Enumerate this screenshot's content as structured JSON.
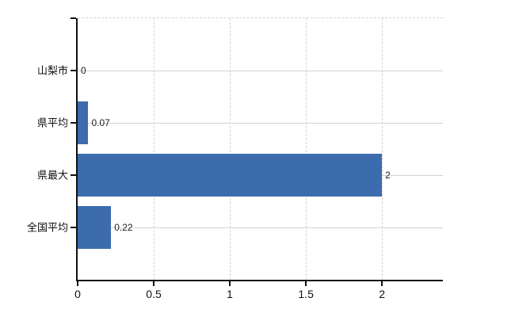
{
  "chart_data": {
    "type": "bar",
    "orientation": "horizontal",
    "title": "",
    "xlabel": "",
    "ylabel": "",
    "categories": [
      "山梨市",
      "県平均",
      "県最大",
      "全国平均"
    ],
    "values": [
      0,
      0.07,
      2,
      0.22
    ],
    "value_labels": [
      "0",
      "0.07",
      "2",
      "0.22"
    ],
    "x_ticks": [
      0,
      0.5,
      1,
      1.5,
      2
    ],
    "x_tick_labels": [
      "0",
      "0.5",
      "1",
      "1.5",
      "2"
    ],
    "xlim": [
      0,
      2.4
    ],
    "grid": "horizontal-solid, vertical-dashed, dashed-top-border",
    "legend_position": "none",
    "colors": {
      "bar": "#3c6cad",
      "axis": "#111111",
      "hgrid": "#cfd6cb",
      "vgrid": "#d8d2d6",
      "tick_text": "#111111",
      "value_text": "#222222",
      "background": "#ffffff"
    }
  }
}
